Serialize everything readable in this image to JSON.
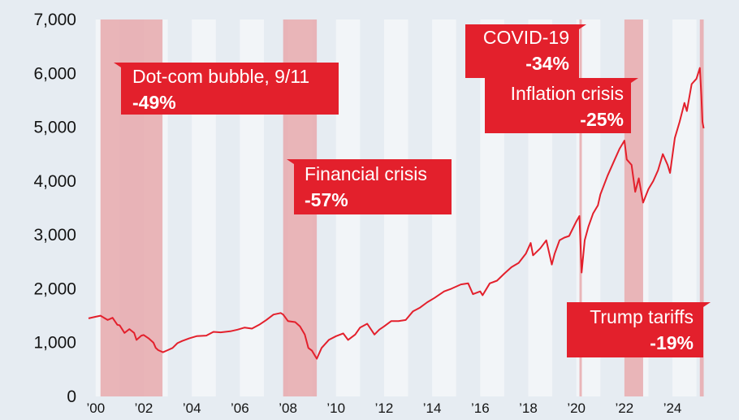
{
  "colors": {
    "background": "#e6ecf2",
    "band_light": "#f2f5f8",
    "crisis_shade": "#e8a9ad",
    "line": "#e3202c",
    "label_box": "#e3202c",
    "label_text": "#ffffff"
  },
  "chart_data": {
    "type": "line",
    "title": "",
    "xlabel": "",
    "ylabel": "",
    "xlim": [
      1999.6,
      2025.35
    ],
    "ylim": [
      0,
      7000
    ],
    "grid": false,
    "y_ticks": [
      {
        "value": 0,
        "label": "0"
      },
      {
        "value": 1000,
        "label": "1,000"
      },
      {
        "value": 2000,
        "label": "2,000"
      },
      {
        "value": 3000,
        "label": "3,000"
      },
      {
        "value": 4000,
        "label": "4,000"
      },
      {
        "value": 5000,
        "label": "5,000"
      },
      {
        "value": 6000,
        "label": "6,000"
      },
      {
        "value": 7000,
        "label": "7,000"
      }
    ],
    "x_ticks": [
      {
        "value": 2000,
        "label": "’00"
      },
      {
        "value": 2002,
        "label": "’02"
      },
      {
        "value": 2004,
        "label": "’04"
      },
      {
        "value": 2006,
        "label": "’06"
      },
      {
        "value": 2008,
        "label": "’08"
      },
      {
        "value": 2010,
        "label": "’10"
      },
      {
        "value": 2012,
        "label": "’12"
      },
      {
        "value": 2014,
        "label": "’14"
      },
      {
        "value": 2016,
        "label": "’16"
      },
      {
        "value": 2018,
        "label": "’18"
      },
      {
        "value": 2020,
        "label": "’20"
      },
      {
        "value": 2022,
        "label": "’22"
      },
      {
        "value": 2024,
        "label": "’24"
      }
    ],
    "crisis_periods": [
      {
        "label": "Dot-com bubble, 9/11",
        "value": "-49%",
        "start": 2000.2,
        "end": 2002.78
      },
      {
        "label": "Financial crisis",
        "value": "-57%",
        "start": 2007.8,
        "end": 2009.2
      },
      {
        "label": "COVID-19",
        "value": "-34%",
        "start": 2020.13,
        "end": 2020.23
      },
      {
        "label": "Inflation crisis",
        "value": "-25%",
        "start": 2022.0,
        "end": 2022.78
      },
      {
        "label": "Trump tariffs",
        "value": "-19%",
        "start": 2025.14,
        "end": 2025.3
      }
    ],
    "series": [
      {
        "x": [
          1999.7,
          2000.0,
          2000.2,
          2000.5,
          2000.7,
          2000.9,
          2001.0,
          2001.2,
          2001.4,
          2001.6,
          2001.7,
          2001.9,
          2002.0,
          2002.2,
          2002.4,
          2002.5,
          2002.6,
          2002.8,
          2003.0,
          2003.2,
          2003.4,
          2003.6,
          2003.9,
          2004.2,
          2004.6,
          2004.9,
          2005.2,
          2005.6,
          2005.9,
          2006.2,
          2006.5,
          2006.8,
          2007.1,
          2007.4,
          2007.7,
          2007.8,
          2008.0,
          2008.3,
          2008.5,
          2008.7,
          2008.85,
          2009.0,
          2009.2,
          2009.4,
          2009.7,
          2010.0,
          2010.3,
          2010.5,
          2010.8,
          2011.0,
          2011.3,
          2011.6,
          2011.8,
          2012.0,
          2012.3,
          2012.6,
          2012.9,
          2013.2,
          2013.5,
          2013.8,
          2014.1,
          2014.5,
          2014.8,
          2015.2,
          2015.5,
          2015.7,
          2016.0,
          2016.1,
          2016.4,
          2016.7,
          2017.0,
          2017.3,
          2017.6,
          2017.9,
          2018.1,
          2018.2,
          2018.5,
          2018.75,
          2018.98,
          2019.1,
          2019.3,
          2019.5,
          2019.7,
          2020.0,
          2020.13,
          2020.22,
          2020.35,
          2020.5,
          2020.7,
          2020.9,
          2021.0,
          2021.3,
          2021.6,
          2021.8,
          2022.0,
          2022.1,
          2022.3,
          2022.45,
          2022.6,
          2022.78,
          2023.0,
          2023.2,
          2023.4,
          2023.6,
          2023.8,
          2023.9,
          2024.1,
          2024.3,
          2024.5,
          2024.6,
          2024.8,
          2025.0,
          2025.14,
          2025.2,
          2025.25,
          2025.3
        ],
        "y": [
          1450,
          1480,
          1500,
          1420,
          1460,
          1330,
          1320,
          1180,
          1250,
          1180,
          1050,
          1130,
          1140,
          1080,
          1000,
          900,
          860,
          820,
          860,
          900,
          990,
          1030,
          1080,
          1120,
          1130,
          1200,
          1190,
          1210,
          1240,
          1280,
          1260,
          1330,
          1420,
          1520,
          1550,
          1520,
          1400,
          1380,
          1300,
          1150,
          900,
          850,
          700,
          900,
          1050,
          1120,
          1170,
          1050,
          1150,
          1280,
          1350,
          1150,
          1240,
          1300,
          1400,
          1400,
          1420,
          1580,
          1650,
          1750,
          1830,
          1950,
          2000,
          2080,
          2100,
          1900,
          1950,
          1880,
          2100,
          2150,
          2280,
          2400,
          2480,
          2650,
          2850,
          2620,
          2750,
          2900,
          2450,
          2650,
          2900,
          2950,
          2980,
          3250,
          3350,
          2300,
          2900,
          3150,
          3400,
          3550,
          3750,
          4100,
          4400,
          4600,
          4750,
          4400,
          4300,
          3800,
          4050,
          3600,
          3850,
          4000,
          4200,
          4500,
          4300,
          4150,
          4800,
          5100,
          5450,
          5300,
          5800,
          5900,
          6100,
          5600,
          5100,
          4980
        ]
      }
    ]
  }
}
